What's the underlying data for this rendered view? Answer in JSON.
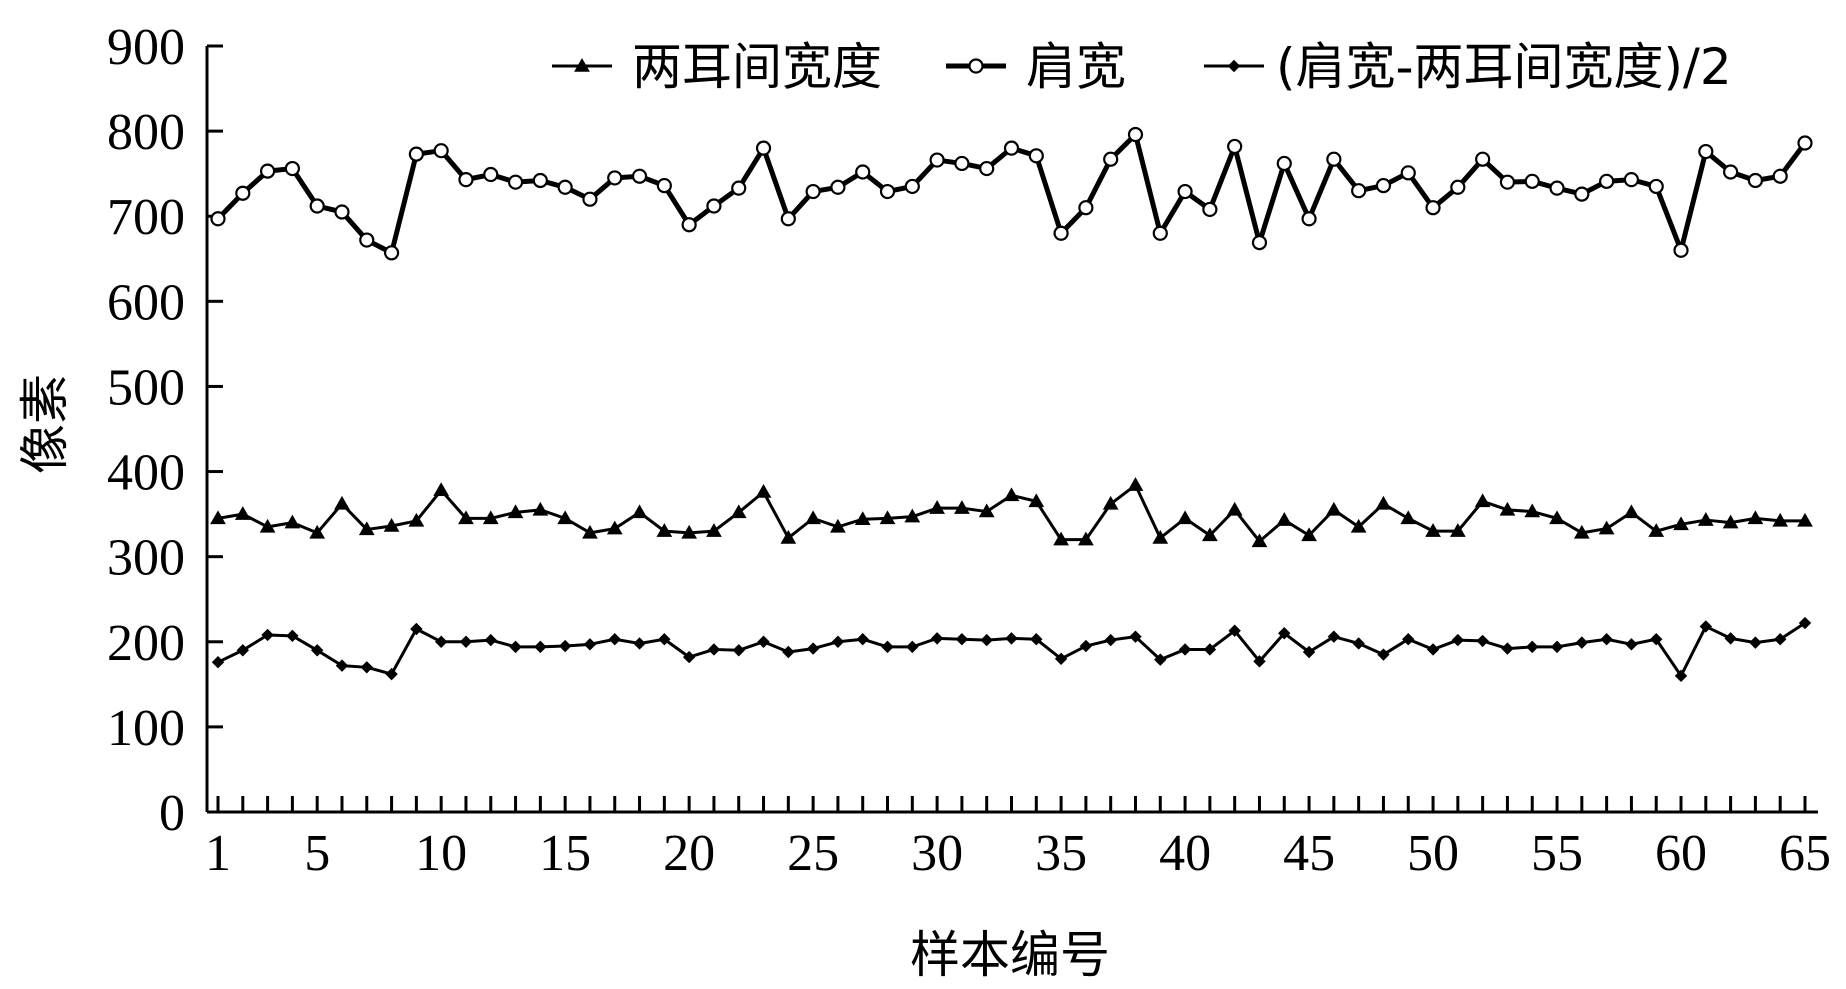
{
  "chart_data": {
    "type": "line",
    "xlabel": "样本编号",
    "ylabel": "像素",
    "ylim": [
      0,
      900
    ],
    "yticks": [
      0,
      100,
      200,
      300,
      400,
      500,
      600,
      700,
      800,
      900
    ],
    "xlim": [
      1,
      65
    ],
    "xticks": [
      1,
      5,
      10,
      15,
      20,
      25,
      30,
      35,
      40,
      45,
      50,
      55,
      60,
      65
    ],
    "grid": false,
    "legend_position": "top",
    "x": [
      1,
      2,
      3,
      4,
      5,
      6,
      7,
      8,
      9,
      10,
      11,
      12,
      13,
      14,
      15,
      16,
      17,
      18,
      19,
      20,
      21,
      22,
      23,
      24,
      25,
      26,
      27,
      28,
      29,
      30,
      31,
      32,
      33,
      34,
      35,
      36,
      37,
      38,
      39,
      40,
      41,
      42,
      43,
      44,
      45,
      46,
      47,
      48,
      49,
      50,
      51,
      52,
      53,
      54,
      55,
      56,
      57,
      58,
      59,
      60,
      61,
      62,
      63,
      64,
      65
    ],
    "series": [
      {
        "name": "两耳间宽度",
        "marker": "triangle",
        "color": "#000000",
        "values": [
          345,
          350,
          335,
          340,
          328,
          362,
          332,
          336,
          342,
          378,
          345,
          345,
          352,
          355,
          345,
          328,
          333,
          352,
          330,
          328,
          330,
          352,
          376,
          322,
          345,
          335,
          344,
          345,
          347,
          357,
          357,
          353,
          372,
          365,
          320,
          320,
          362,
          384,
          322,
          345,
          325,
          355,
          318,
          343,
          325,
          355,
          335,
          362,
          345,
          330,
          330,
          365,
          355,
          353,
          345,
          328,
          333,
          352,
          330,
          338,
          343,
          340,
          345,
          342,
          342
        ]
      },
      {
        "name": "肩宽",
        "marker": "circle",
        "color": "#000000",
        "values": [
          697,
          727,
          753,
          756,
          712,
          705,
          672,
          657,
          773,
          777,
          743,
          749,
          740,
          742,
          734,
          720,
          745,
          747,
          736,
          690,
          712,
          733,
          780,
          697,
          729,
          734,
          752,
          729,
          735,
          766,
          762,
          756,
          780,
          771,
          680,
          710,
          767,
          796,
          680,
          729,
          708,
          782,
          669,
          762,
          697,
          767,
          730,
          736,
          751,
          710,
          734,
          767,
          740,
          741,
          733,
          726,
          741,
          743,
          735,
          660,
          776,
          752,
          742,
          747,
          786
        ]
      },
      {
        "name": "(肩宽-两耳间宽度)/2",
        "marker": "diamond",
        "color": "#000000",
        "values": [
          176,
          190,
          208,
          207,
          190,
          172,
          170,
          162,
          215,
          200,
          200,
          202,
          194,
          194,
          195,
          197,
          203,
          198,
          203,
          182,
          191,
          190,
          200,
          188,
          192,
          200,
          203,
          194,
          194,
          204,
          203,
          202,
          204,
          203,
          180,
          195,
          202,
          206,
          179,
          191,
          191,
          213,
          177,
          210,
          188,
          206,
          198,
          185,
          203,
          191,
          202,
          201,
          192,
          194,
          194,
          199,
          203,
          197,
          203,
          160,
          218,
          204,
          199,
          203,
          222
        ]
      }
    ]
  }
}
